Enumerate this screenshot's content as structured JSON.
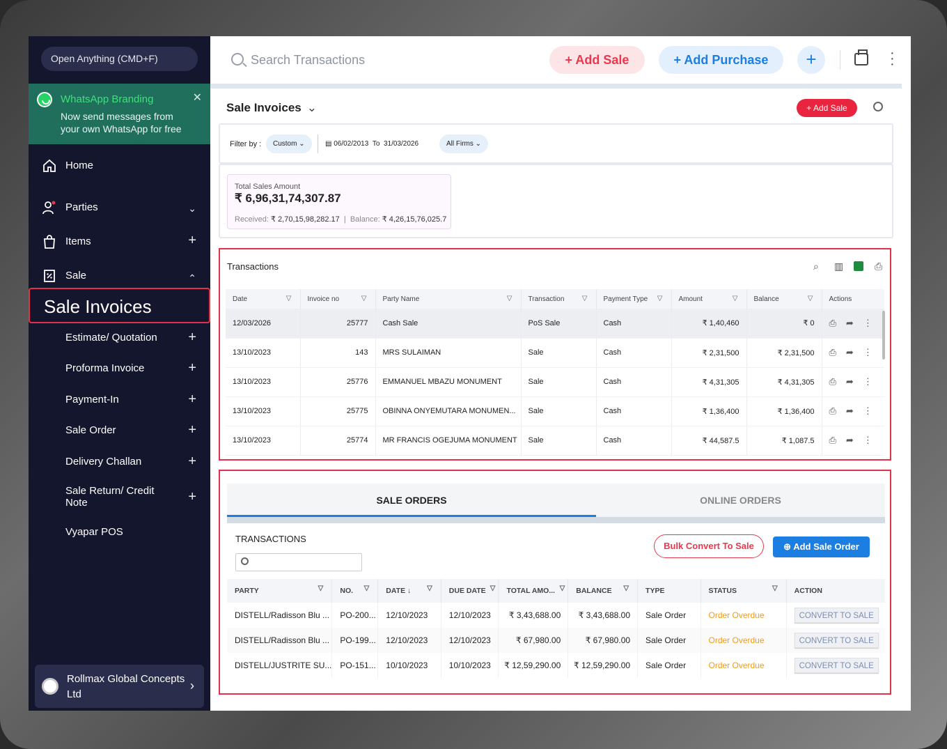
{
  "sidebar": {
    "open_anything": "Open Anything (CMD+F)",
    "whatsapp": {
      "title": "WhatsApp Branding",
      "text": "Now send messages from your own WhatsApp for free"
    },
    "nav": [
      {
        "label": "Home",
        "icon": "home-icon"
      },
      {
        "label": "Parties",
        "icon": "parties-icon"
      },
      {
        "label": "Items",
        "icon": "items-icon"
      },
      {
        "label": "Sale",
        "icon": "sale-icon"
      }
    ],
    "active": "Sale Invoices",
    "sub": [
      "Estimate/ Quotation",
      "Proforma Invoice",
      "Payment-In",
      "Sale Order",
      "Delivery Challan",
      "Sale Return/ Credit Note",
      "Vyapar POS"
    ],
    "company": "Rollmax Global Concepts Ltd"
  },
  "topbar": {
    "search_placeholder": "Search Transactions",
    "add_sale": "Add Sale",
    "add_purchase": "Add Purchase"
  },
  "page": {
    "title": "Sale Invoices",
    "add_sale_small": "Add Sale",
    "filter_label": "Filter by :",
    "filter_custom": "Custom",
    "date_from": "06/02/2013",
    "date_to_label": "To",
    "date_to": "31/03/2026",
    "firms": "All Firms",
    "total_label": "Total Sales Amount",
    "total_amount": "₹ 6,96,31,74,307.87",
    "received_label": "Received:",
    "received": "₹ 2,70,15,98,282.17",
    "balance_label": "Balance:",
    "balance": "₹ 4,26,15,76,025.7"
  },
  "transactions": {
    "title": "Transactions",
    "columns": [
      "Date",
      "Invoice no",
      "Party Name",
      "Transaction",
      "Payment Type",
      "Amount",
      "Balance",
      "Actions"
    ],
    "rows": [
      {
        "date": "12/03/2026",
        "invoice": "25777",
        "party": "Cash Sale",
        "type": "PoS Sale",
        "pay": "Cash",
        "amount": "₹ 1,40,460",
        "balance": "₹ 0"
      },
      {
        "date": "13/10/2023",
        "invoice": "143",
        "party": "MRS SULAIMAN",
        "type": "Sale",
        "pay": "Cash",
        "amount": "₹ 2,31,500",
        "balance": "₹ 2,31,500"
      },
      {
        "date": "13/10/2023",
        "invoice": "25776",
        "party": "EMMANUEL MBAZU MONUMENT",
        "type": "Sale",
        "pay": "Cash",
        "amount": "₹ 4,31,305",
        "balance": "₹ 4,31,305"
      },
      {
        "date": "13/10/2023",
        "invoice": "25775",
        "party": "OBINNA ONYEMUTARA MONUMEN...",
        "type": "Sale",
        "pay": "Cash",
        "amount": "₹ 1,36,400",
        "balance": "₹ 1,36,400"
      },
      {
        "date": "13/10/2023",
        "invoice": "25774",
        "party": "MR FRANCIS OGEJUMA MONUMENT",
        "type": "Sale",
        "pay": "Cash",
        "amount": "₹ 44,587.5",
        "balance": "₹ 1,087.5"
      }
    ]
  },
  "orders": {
    "tab_a": "SALE ORDERS",
    "tab_b": "ONLINE ORDERS",
    "title": "TRANSACTIONS",
    "bulk": "Bulk Convert To Sale",
    "add_order": "Add Sale Order",
    "columns": [
      "PARTY",
      "NO.",
      "DATE",
      "DUE DATE",
      "TOTAL AMO...",
      "BALANCE",
      "TYPE",
      "STATUS",
      "ACTION"
    ],
    "rows": [
      {
        "party": "DISTELL/Radisson Blu ...",
        "no": "PO-200...",
        "date": "12/10/2023",
        "due": "12/10/2023",
        "total": "₹ 3,43,688.00",
        "balance": "₹ 3,43,688.00",
        "type": "Sale Order",
        "status": "Order Overdue",
        "action": "CONVERT TO SALE"
      },
      {
        "party": "DISTELL/Radisson Blu ...",
        "no": "PO-199...",
        "date": "12/10/2023",
        "due": "12/10/2023",
        "total": "₹ 67,980.00",
        "balance": "₹ 67,980.00",
        "type": "Sale Order",
        "status": "Order Overdue",
        "action": "CONVERT TO SALE"
      },
      {
        "party": "DISTELL/JUSTRITE SU...",
        "no": "PO-151...",
        "date": "10/10/2023",
        "due": "10/10/2023",
        "total": "₹ 12,59,290.00",
        "balance": "₹ 12,59,290.00",
        "type": "Sale Order",
        "status": "Order Overdue",
        "action": "CONVERT TO SALE"
      }
    ]
  }
}
